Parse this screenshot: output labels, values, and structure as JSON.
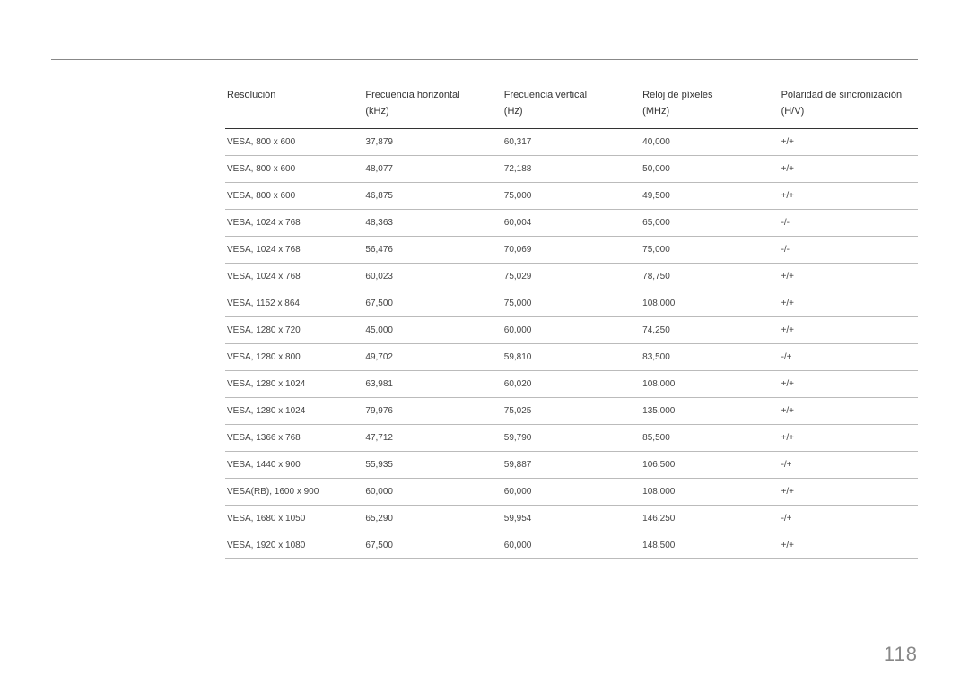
{
  "page_number": "118",
  "table": {
    "columns": [
      {
        "label": "Resolución",
        "unit": ""
      },
      {
        "label": "Frecuencia horizontal",
        "unit": "(kHz)"
      },
      {
        "label": "Frecuencia vertical",
        "unit": "(Hz)"
      },
      {
        "label": "Reloj de píxeles",
        "unit": "(MHz)"
      },
      {
        "label": "Polaridad de sincronización",
        "unit": "(H/V)"
      }
    ],
    "rows": [
      [
        "VESA, 800 x 600",
        "37,879",
        "60,317",
        "40,000",
        "+/+"
      ],
      [
        "VESA, 800 x 600",
        "48,077",
        "72,188",
        "50,000",
        "+/+"
      ],
      [
        "VESA, 800 x 600",
        "46,875",
        "75,000",
        "49,500",
        "+/+"
      ],
      [
        "VESA, 1024 x 768",
        "48,363",
        "60,004",
        "65,000",
        "-/-"
      ],
      [
        "VESA, 1024 x 768",
        "56,476",
        "70,069",
        "75,000",
        "-/-"
      ],
      [
        "VESA, 1024 x 768",
        "60,023",
        "75,029",
        "78,750",
        "+/+"
      ],
      [
        "VESA, 1152 x 864",
        "67,500",
        "75,000",
        "108,000",
        "+/+"
      ],
      [
        "VESA, 1280 x 720",
        "45,000",
        "60,000",
        "74,250",
        "+/+"
      ],
      [
        "VESA, 1280 x 800",
        "49,702",
        "59,810",
        "83,500",
        "-/+"
      ],
      [
        "VESA, 1280 x 1024",
        "63,981",
        "60,020",
        "108,000",
        "+/+"
      ],
      [
        "VESA, 1280 x 1024",
        "79,976",
        "75,025",
        "135,000",
        "+/+"
      ],
      [
        "VESA, 1366 x 768",
        "47,712",
        "59,790",
        "85,500",
        "+/+"
      ],
      [
        "VESA, 1440 x 900",
        "55,935",
        "59,887",
        "106,500",
        "-/+"
      ],
      [
        "VESA(RB), 1600 x 900",
        "60,000",
        "60,000",
        "108,000",
        "+/+"
      ],
      [
        "VESA, 1680 x 1050",
        "65,290",
        "59,954",
        "146,250",
        "-/+"
      ],
      [
        "VESA, 1920 x 1080",
        "67,500",
        "60,000",
        "148,500",
        "+/+"
      ]
    ]
  }
}
